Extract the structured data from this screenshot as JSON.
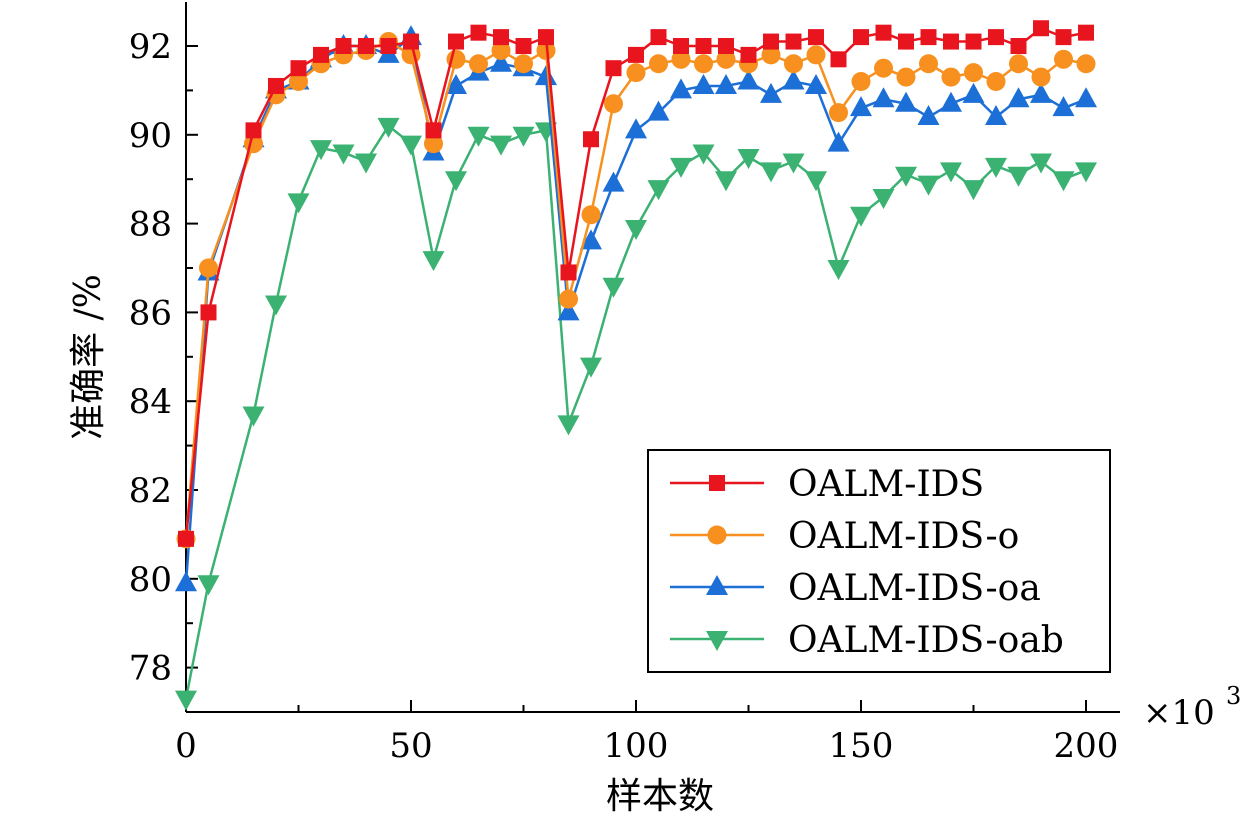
{
  "chart_data": {
    "type": "line",
    "xlabel": "样本数",
    "ylabel": "准确率 /%",
    "x_multiplier_label": "×10",
    "x_multiplier_exp": "3",
    "xlim": [
      -1,
      206
    ],
    "ylim": [
      77,
      93
    ],
    "x_ticks": [
      0,
      50,
      100,
      150,
      200
    ],
    "y_ticks": [
      78,
      80,
      82,
      84,
      86,
      88,
      90,
      92
    ],
    "grid": false,
    "legend_position": "bottom-right",
    "x": [
      0,
      5,
      15,
      20,
      25,
      30,
      35,
      40,
      45,
      50,
      55,
      60,
      65,
      70,
      75,
      80,
      85,
      90,
      95,
      100,
      105,
      110,
      115,
      120,
      125,
      130,
      135,
      140,
      145,
      150,
      155,
      160,
      165,
      170,
      175,
      180,
      185,
      190,
      195,
      200
    ],
    "series": [
      {
        "name": "OALM-IDS",
        "color": "#e8141e",
        "marker": "square",
        "values": [
          80.9,
          86.0,
          90.1,
          91.1,
          91.5,
          91.8,
          92.0,
          92.0,
          92.0,
          92.1,
          90.1,
          92.1,
          92.3,
          92.2,
          92.0,
          92.2,
          86.9,
          89.9,
          91.5,
          91.8,
          92.2,
          92.0,
          92.0,
          92.0,
          91.8,
          92.1,
          92.1,
          92.2,
          91.7,
          92.2,
          92.3,
          92.1,
          92.2,
          92.1,
          92.1,
          92.2,
          92.0,
          92.4,
          92.2,
          92.3
        ]
      },
      {
        "name": "OALM-IDS-o",
        "color": "#f7901e",
        "marker": "circle",
        "values": [
          80.9,
          87.0,
          89.8,
          90.9,
          91.2,
          91.6,
          91.8,
          91.9,
          92.1,
          91.8,
          89.8,
          91.7,
          91.6,
          91.9,
          91.6,
          91.9,
          86.3,
          88.2,
          90.7,
          91.4,
          91.6,
          91.7,
          91.6,
          91.7,
          91.6,
          91.8,
          91.6,
          91.8,
          90.5,
          91.2,
          91.5,
          91.3,
          91.6,
          91.3,
          91.4,
          91.2,
          91.6,
          91.3,
          91.7,
          91.6
        ]
      },
      {
        "name": "OALM-IDS-oa",
        "color": "#1c6fd6",
        "marker": "triangle-up",
        "values": [
          79.9,
          86.9,
          89.9,
          91.0,
          91.2,
          91.7,
          92.0,
          92.0,
          91.8,
          92.2,
          89.6,
          91.1,
          91.4,
          91.6,
          91.5,
          91.3,
          86.0,
          87.6,
          88.9,
          90.1,
          90.5,
          91.0,
          91.1,
          91.1,
          91.2,
          90.9,
          91.2,
          91.1,
          89.8,
          90.6,
          90.8,
          90.7,
          90.4,
          90.7,
          90.9,
          90.4,
          90.8,
          90.9,
          90.6,
          90.8
        ]
      },
      {
        "name": "OALM-IDS-oab",
        "color": "#3bb272",
        "marker": "triangle-down",
        "values": [
          77.3,
          79.9,
          83.7,
          86.2,
          88.5,
          89.7,
          89.6,
          89.4,
          90.2,
          89.8,
          87.2,
          89.0,
          90.0,
          89.8,
          90.0,
          90.1,
          83.5,
          84.8,
          86.6,
          87.9,
          88.8,
          89.3,
          89.6,
          89.0,
          89.5,
          89.2,
          89.4,
          89.0,
          87.0,
          88.2,
          88.6,
          89.1,
          88.9,
          89.2,
          88.8,
          89.3,
          89.1,
          89.4,
          89.0,
          89.2
        ]
      }
    ]
  }
}
